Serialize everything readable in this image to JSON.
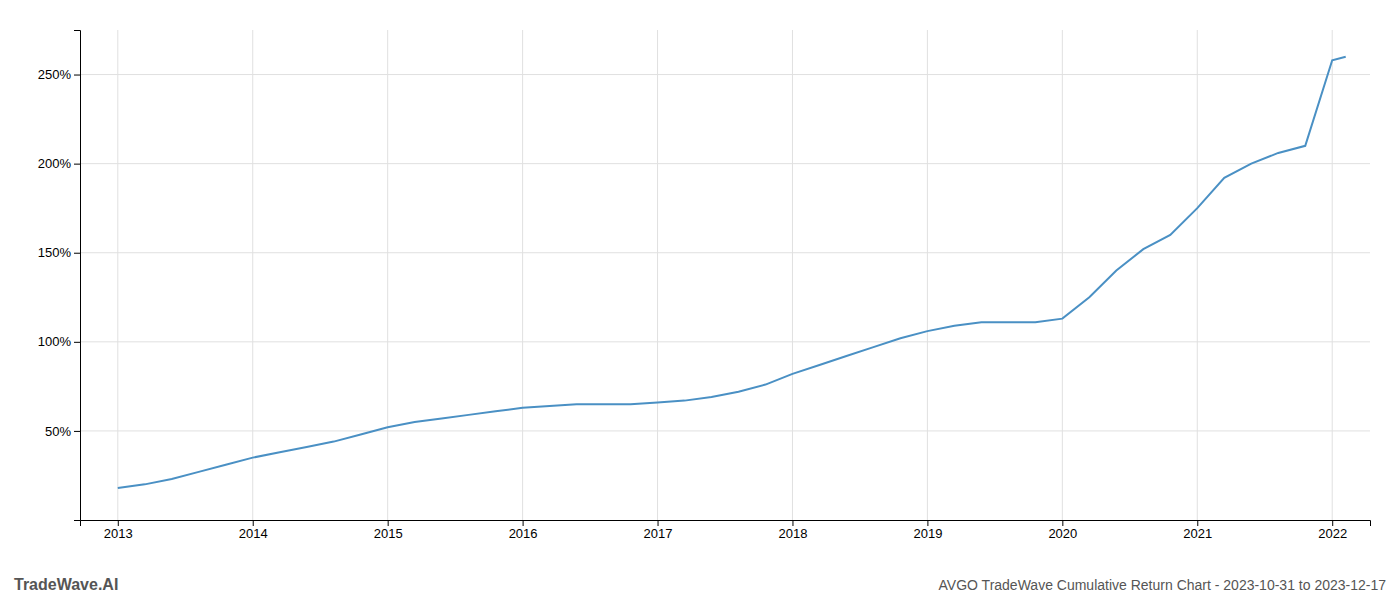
{
  "chart_data": {
    "type": "line",
    "title": "AVGO TradeWave Cumulative Return Chart - 2023-10-31 to 2023-12-17",
    "annotations": [
      "TradeWave.AI"
    ],
    "x": [
      2013.0,
      2013.2,
      2013.4,
      2013.6,
      2013.8,
      2014.0,
      2014.2,
      2014.4,
      2014.6,
      2014.8,
      2015.0,
      2015.2,
      2015.4,
      2015.6,
      2015.8,
      2016.0,
      2016.2,
      2016.4,
      2016.6,
      2016.8,
      2017.0,
      2017.2,
      2017.4,
      2017.6,
      2017.8,
      2018.0,
      2018.2,
      2018.4,
      2018.6,
      2018.8,
      2019.0,
      2019.2,
      2019.4,
      2019.6,
      2019.8,
      2020.0,
      2020.2,
      2020.4,
      2020.6,
      2020.8,
      2021.0,
      2021.2,
      2021.4,
      2021.6,
      2021.8,
      2022.0,
      2022.1
    ],
    "values": [
      18,
      20,
      23,
      27,
      31,
      35,
      38,
      41,
      44,
      48,
      52,
      55,
      57,
      59,
      61,
      63,
      64,
      65,
      65,
      65,
      66,
      67,
      69,
      72,
      76,
      82,
      87,
      92,
      97,
      102,
      106,
      109,
      111,
      111,
      111,
      113,
      125,
      140,
      152,
      160,
      175,
      192,
      200,
      206,
      210,
      258,
      260
    ],
    "color": "#4a90c4",
    "xlim": [
      2012.72,
      2022.28
    ],
    "xticks": [
      2013,
      2014,
      2015,
      2016,
      2017,
      2018,
      2019,
      2020,
      2021,
      2022
    ],
    "ylim": [
      0,
      275
    ],
    "yticks": [
      {
        "value": 50,
        "label": "50%"
      },
      {
        "value": 100,
        "label": "100%"
      },
      {
        "value": 150,
        "label": "150%"
      },
      {
        "value": 200,
        "label": "200%"
      },
      {
        "value": 250,
        "label": "250%"
      }
    ],
    "grid": true
  }
}
